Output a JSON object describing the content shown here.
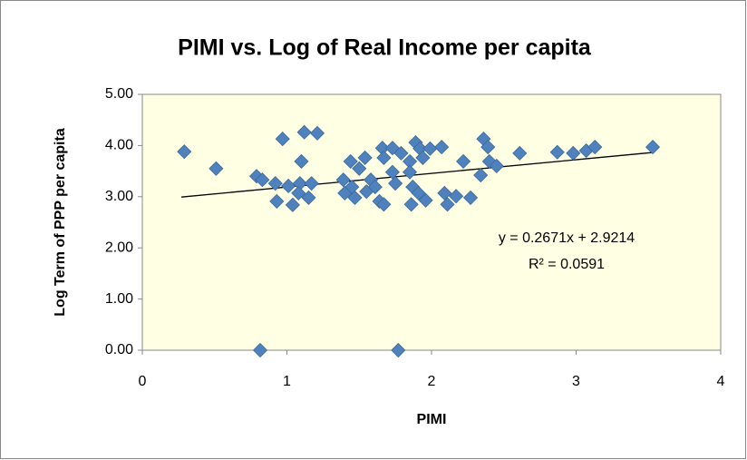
{
  "chart_data": {
    "type": "scatter",
    "title": "PIMI vs. Log of Real Income per capita",
    "x_label": "PIMI",
    "y_label": "Log Term of PPP per capita",
    "color": "#4f81bd",
    "x": [
      0.29,
      0.51,
      0.79,
      0.83,
      0.815,
      0.92,
      0.93,
      0.97,
      1.01,
      1.04,
      1.09,
      1.1,
      1.12,
      1.15,
      1.17,
      1.21,
      1.08,
      1.39,
      1.4,
      1.44,
      1.45,
      1.47,
      1.5,
      1.54,
      1.55,
      1.58,
      1.61,
      1.64,
      1.66,
      1.67,
      1.67,
      1.73,
      1.73,
      1.75,
      1.77,
      1.79,
      1.85,
      1.85,
      1.86,
      1.87,
      1.89,
      1.91,
      1.92,
      1.94,
      1.96,
      1.99,
      2.07,
      2.09,
      2.11,
      2.17,
      2.22,
      2.27,
      2.34,
      2.36,
      2.39,
      2.4,
      2.45,
      2.61,
      2.87,
      2.98,
      3.07,
      3.13,
      3.53
    ],
    "values": [
      3.88,
      3.55,
      3.4,
      3.33,
      0,
      3.26,
      2.91,
      4.13,
      3.21,
      2.84,
      3.26,
      3.69,
      4.26,
      2.98,
      3.26,
      4.24,
      3.07,
      3.33,
      3.07,
      3.69,
      3.19,
      2.98,
      3.55,
      3.76,
      3.1,
      3.33,
      3.19,
      2.91,
      3.95,
      3.76,
      2.85,
      3.48,
      3.95,
      3.26,
      0,
      3.85,
      3.69,
      3.48,
      2.85,
      3.19,
      4.06,
      3.07,
      3.94,
      3.76,
      2.93,
      3.94,
      3.97,
      3.07,
      2.85,
      3.01,
      3.69,
      2.98,
      3.42,
      4.13,
      3.97,
      3.69,
      3.6,
      3.85,
      3.87,
      3.85,
      3.9,
      3.97,
      3.97
    ],
    "xlim": [
      0,
      4
    ],
    "xticks": [
      0,
      1,
      2,
      3,
      4
    ],
    "ylim": [
      0,
      5
    ],
    "yticks": [
      {
        "value": 0,
        "label": "0.00"
      },
      {
        "value": 1,
        "label": "1.00"
      },
      {
        "value": 2,
        "label": "2.00"
      },
      {
        "value": 3,
        "label": "3.00"
      },
      {
        "value": 4,
        "label": "4.00"
      },
      {
        "value": 5,
        "label": "5.00"
      }
    ],
    "grid": false,
    "trendline": {
      "x": [
        0.27,
        3.53
      ],
      "slope": 0.2671,
      "intercept": 2.9214,
      "equation": "y = 0.2671x + 2.9214",
      "r_squared_label": "R² = 0.0591"
    }
  }
}
